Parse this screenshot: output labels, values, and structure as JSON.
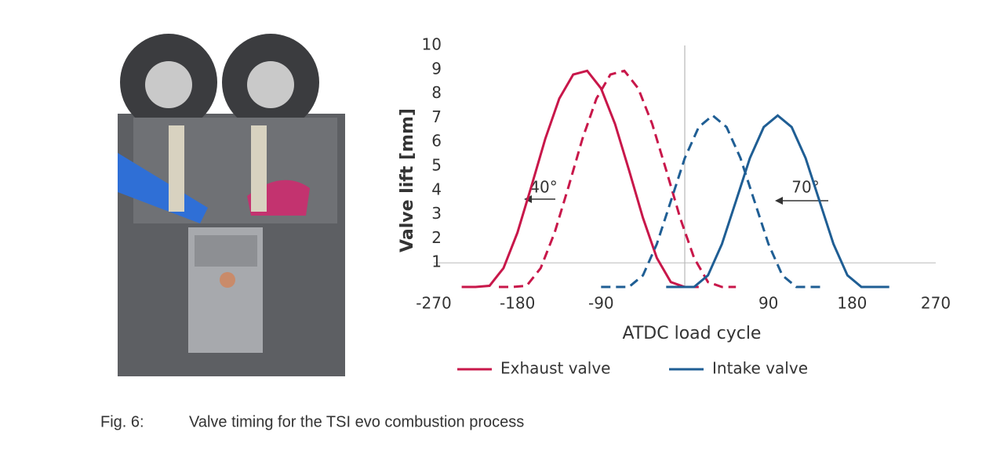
{
  "chart_data": {
    "type": "line",
    "y_label": "Valve lift [mm]",
    "x_label": "ATDC load cycle",
    "xlim": [
      -270,
      270
    ],
    "xticks": [
      -270,
      -180,
      -90,
      90,
      180,
      270
    ],
    "ylim": [
      0,
      10
    ],
    "yticks": [
      1,
      2,
      3,
      4,
      5,
      6,
      7,
      8,
      9,
      10
    ],
    "reference_x": [
      0
    ],
    "reference_y": [
      1
    ],
    "annotations": [
      "40°",
      "70°"
    ],
    "series": [
      {
        "name": "Exhaust valve",
        "color": "#c8174a",
        "style": "solid",
        "x": [
          -240,
          -225,
          -210,
          -195,
          -180,
          -165,
          -150,
          -135,
          -120,
          -105,
          -90,
          -75,
          -60,
          -45,
          -30,
          -15,
          0,
          15
        ],
        "values": [
          0,
          0,
          0.05,
          0.78,
          2.25,
          4.16,
          6.14,
          7.8,
          8.8,
          8.95,
          8.22,
          6.75,
          4.84,
          2.86,
          1.2,
          0.2,
          0,
          0
        ]
      },
      {
        "color": "#c8174a",
        "style": "dashed",
        "x": [
          -200,
          -185,
          -170,
          -155,
          -140,
          -125,
          -110,
          -95,
          -80,
          -65,
          -50,
          -35,
          -20,
          -5,
          10,
          25,
          40,
          55
        ],
        "values": [
          0,
          0,
          0.05,
          0.78,
          2.25,
          4.16,
          6.14,
          7.8,
          8.8,
          8.95,
          8.22,
          6.75,
          4.84,
          2.86,
          1.2,
          0.2,
          0,
          0
        ]
      },
      {
        "color": "#1f5e94",
        "style": "dashed",
        "x": [
          -90,
          -75,
          -60,
          -45,
          -30,
          -15,
          0,
          15,
          30,
          45,
          60,
          75,
          90,
          105,
          120,
          135,
          150
        ],
        "values": [
          0,
          0,
          0,
          0.48,
          1.78,
          3.55,
          5.33,
          6.62,
          7.1,
          6.62,
          5.33,
          3.55,
          1.78,
          0.48,
          0,
          0,
          0
        ]
      },
      {
        "name": "Intake valve",
        "color": "#1f5e94",
        "style": "solid",
        "x": [
          -20,
          -5,
          10,
          25,
          40,
          55,
          70,
          85,
          100,
          115,
          130,
          145,
          160,
          175,
          190,
          205,
          220
        ],
        "values": [
          0,
          0,
          0,
          0.48,
          1.78,
          3.55,
          5.33,
          6.62,
          7.1,
          6.62,
          5.33,
          3.55,
          1.78,
          0.48,
          0,
          0,
          0
        ]
      }
    ]
  },
  "caption": {
    "label": "Fig. 6:",
    "text": "Valve timing for the TSI evo combustion process"
  }
}
